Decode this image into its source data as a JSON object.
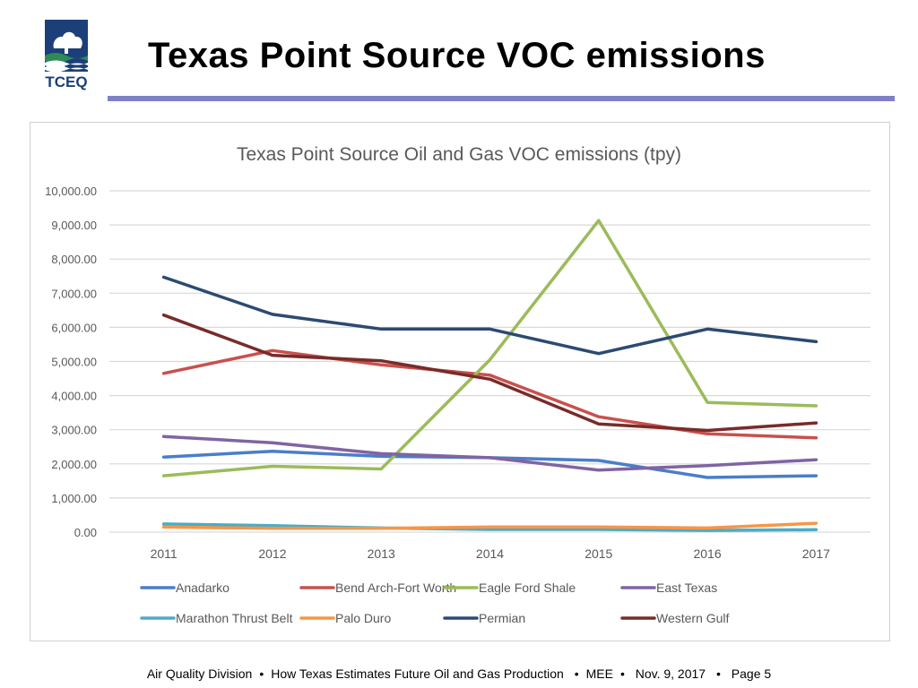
{
  "header": {
    "title": "Texas Point Source VOC emissions",
    "logo_text": "TCEQ"
  },
  "colors": {
    "rule": "#8080c8",
    "logo_blue": "#1c3f7a",
    "logo_green": "#2e8b57"
  },
  "footer": {
    "division": "Air Quality Division",
    "talk": "How Texas Estimates Future Oil and Gas Production",
    "venue": "MEE",
    "date": "Nov. 9, 2017",
    "page": "Page 5",
    "separator": "•"
  },
  "chart_data": {
    "type": "line",
    "title": "Texas Point Source Oil and Gas VOC emissions (tpy)",
    "xlabel": "",
    "ylabel": "",
    "ylim": [
      0,
      10000
    ],
    "yticks": [
      0,
      1000,
      2000,
      3000,
      4000,
      5000,
      6000,
      7000,
      8000,
      9000,
      10000
    ],
    "ytick_labels": [
      "0.00",
      "1,000.00",
      "2,000.00",
      "3,000.00",
      "4,000.00",
      "5,000.00",
      "6,000.00",
      "7,000.00",
      "8,000.00",
      "9,000.00",
      "10,000.00"
    ],
    "grid": true,
    "legend": "bottom",
    "categories": [
      "2011",
      "2012",
      "2013",
      "2014",
      "2015",
      "2016",
      "2017"
    ],
    "series": [
      {
        "name": "Anadarko",
        "color": "#4a7ec9",
        "values": [
          2200,
          2370,
          2220,
          2180,
          2100,
          1600,
          1650
        ]
      },
      {
        "name": "Bend Arch-Fort Worth",
        "color": "#c9504d",
        "values": [
          4650,
          5320,
          4900,
          4600,
          3380,
          2880,
          2760
        ]
      },
      {
        "name": "Eagle Ford Shale",
        "color": "#9bbb59",
        "values": [
          1650,
          1930,
          1850,
          5050,
          9130,
          3800,
          3700
        ]
      },
      {
        "name": "East Texas",
        "color": "#8064a2",
        "values": [
          2800,
          2620,
          2300,
          2180,
          1820,
          1950,
          2120
        ]
      },
      {
        "name": "Marathon Thrust Belt",
        "color": "#4bacc6",
        "values": [
          240,
          190,
          120,
          80,
          80,
          50,
          70
        ]
      },
      {
        "name": "Palo Duro",
        "color": "#f79646",
        "values": [
          150,
          110,
          110,
          150,
          150,
          120,
          260
        ]
      },
      {
        "name": "Permian",
        "color": "#2c4a72",
        "values": [
          7470,
          6380,
          5950,
          5950,
          5230,
          5950,
          5580
        ]
      },
      {
        "name": "Western Gulf",
        "color": "#772c2a",
        "values": [
          6360,
          5180,
          5020,
          4480,
          3170,
          2980,
          3200
        ]
      }
    ]
  }
}
